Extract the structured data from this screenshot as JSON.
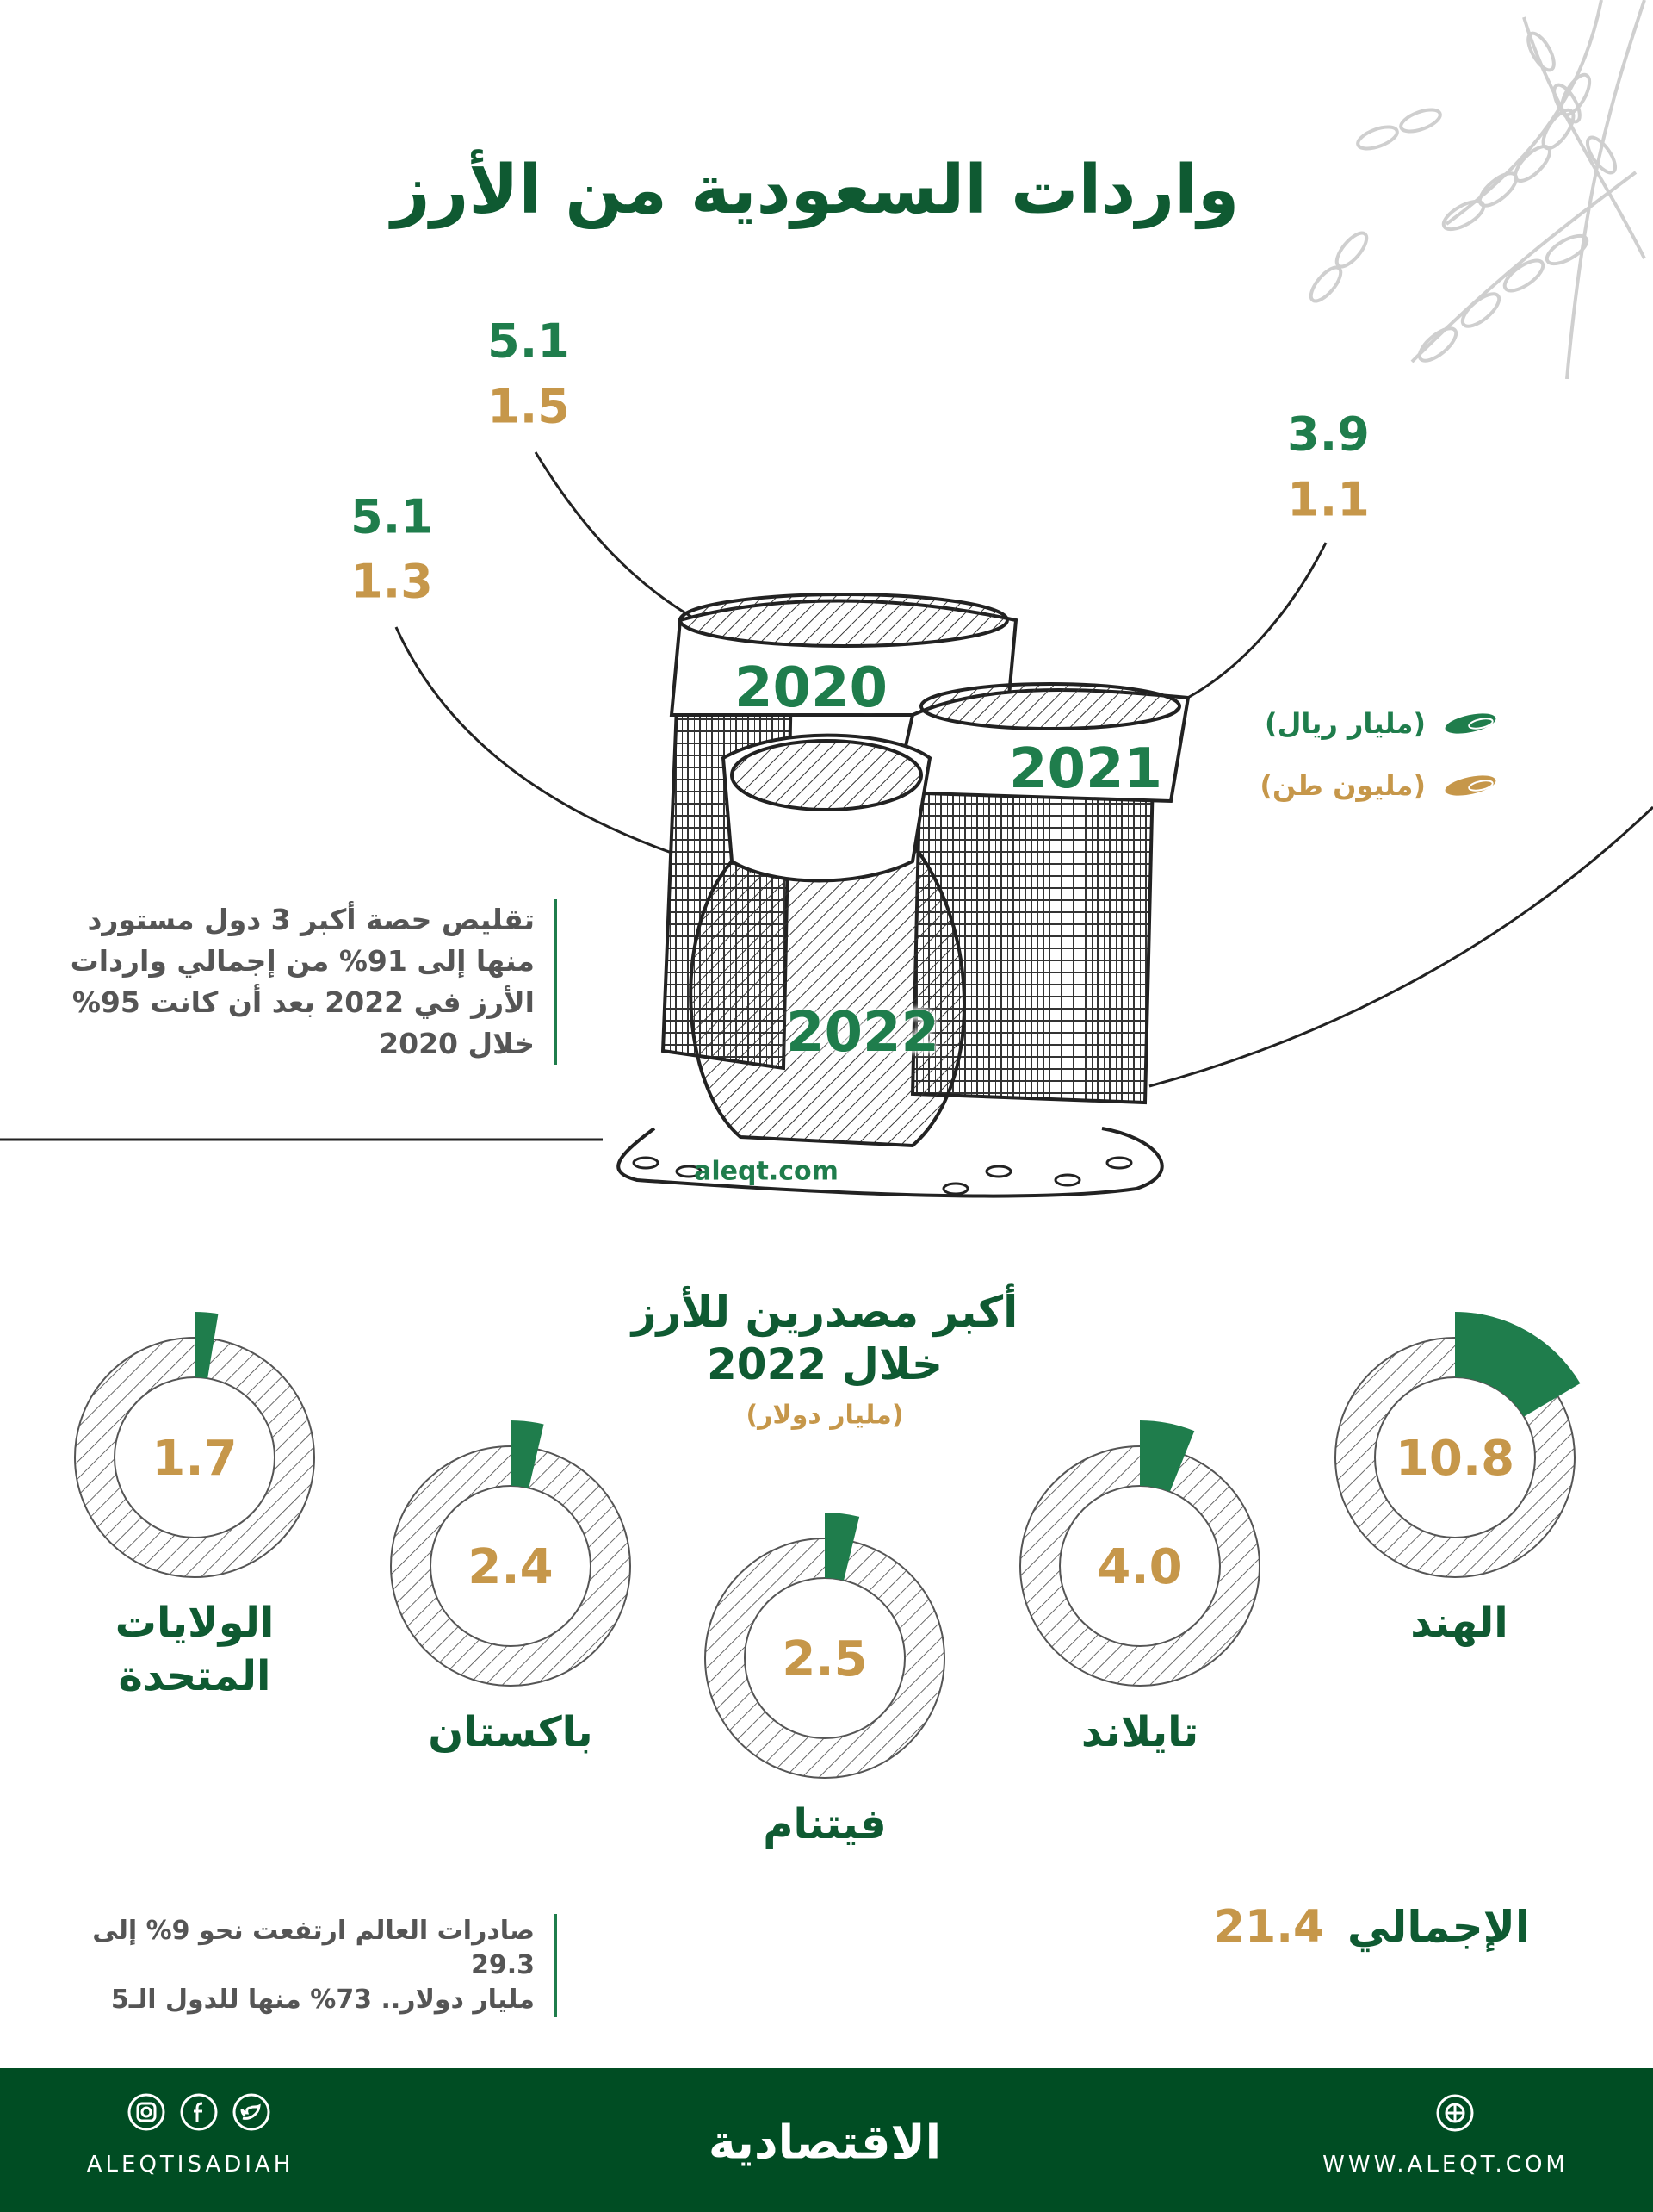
{
  "title": "واردات السعودية من الأرز",
  "colors": {
    "green": "#1f7d4c",
    "gold": "#c6974a",
    "dark_green": "#0f5a32",
    "footer": "#004d23"
  },
  "legend": [
    {
      "label": "(مليار ريال)",
      "color": "#1f7d4c",
      "icon": "rice-grain-icon"
    },
    {
      "label": "(مليون طن)",
      "color": "#c6974a",
      "icon": "rice-grain-icon"
    }
  ],
  "imports": [
    {
      "year": "2020",
      "riyal": "5.1",
      "tons": "1.5"
    },
    {
      "year": "2021",
      "riyal": "3.9",
      "tons": "1.1"
    },
    {
      "year": "2022",
      "riyal": "5.1",
      "tons": "1.3"
    }
  ],
  "note1": [
    "تقليص حصة أكبر 3 دول مستورد",
    "منها إلى 91% من إجمالي واردات",
    "الأرز في 2022 بعد أن كانت 95%",
    "خلال 2020"
  ],
  "source": "aleqt.com",
  "exporters": {
    "title_line1": "أكبر مصدرين للأرز",
    "title_line2": "خلال 2022",
    "unit": "(مليار دولار)",
    "total_label": "الإجمالي",
    "total_value": "21.4"
  },
  "note2": [
    "صادرات العالم ارتفعت نحو 9% إلى 29.3",
    "مليار دولار.. 73% منها للدول الـ5"
  ],
  "chart_data": [
    {
      "type": "table",
      "columns": [
        "year",
        "مليار ريال",
        "مليون طن"
      ],
      "rows": [
        [
          "2020",
          5.1,
          1.5
        ],
        [
          "2021",
          3.9,
          1.1
        ],
        [
          "2022",
          5.1,
          1.3
        ]
      ]
    },
    {
      "type": "pie",
      "title": "أكبر مصدرين للأرز خلال 2022",
      "unit": "(مليار دولار)",
      "categories": [
        "الهند",
        "تايلاند",
        "فيتنام",
        "باكستان",
        "الولايات المتحدة"
      ],
      "values": [
        10.8,
        4.0,
        2.5,
        2.4,
        1.7
      ],
      "labels": [
        "10.8",
        "4.0",
        "2.5",
        "2.4",
        "1.7"
      ],
      "total": 21.4
    }
  ],
  "footer": {
    "logo": "الاقتصادية",
    "handle": "ALEQTISADIAH",
    "website": "WWW.ALEQT.COM",
    "social_icons": [
      "instagram-icon",
      "facebook-icon",
      "twitter-icon"
    ],
    "web_icon": "globe-icon"
  }
}
